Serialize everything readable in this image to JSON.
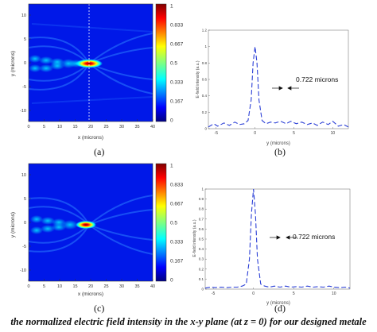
{
  "panels": {
    "a": {
      "caption": "(a)",
      "xlabel": "x (microns)",
      "ylabel": "y (microns)",
      "xticks": [
        "0",
        "5",
        "10",
        "15",
        "20",
        "25",
        "30",
        "35",
        "40"
      ],
      "yticks": [
        "10",
        "5",
        "0",
        "-5",
        "-10"
      ],
      "colorbar_ticks": [
        "1",
        "0.833",
        "0.667",
        "0.5",
        "0.333",
        "0.167",
        "0"
      ]
    },
    "b": {
      "caption": "(b)",
      "xlabel": "y (microns)",
      "ylabel": "E-field intensity (a.u.)",
      "xticks": [
        "-5",
        "0",
        "5",
        "10"
      ],
      "yticks": [
        "1.2",
        "1",
        "0.8",
        "0.6",
        "0.4",
        "0.2",
        "0"
      ],
      "annotation": "0.722 microns"
    },
    "c": {
      "caption": "(c)",
      "xlabel": "x (microns)",
      "ylabel": "y (microns)",
      "xticks": [
        "0",
        "5",
        "10",
        "15",
        "20",
        "25",
        "30",
        "35",
        "40"
      ],
      "yticks": [
        "10",
        "5",
        "0",
        "-5",
        "-10"
      ],
      "colorbar_ticks": [
        "1",
        "0.833",
        "0.667",
        "0.5",
        "0.333",
        "0.167",
        "0"
      ]
    },
    "d": {
      "caption": "(d)",
      "xlabel": "y (microns)",
      "ylabel": "E-field intensity (a.u.)",
      "xticks": [
        "-5",
        "0",
        "5",
        "10"
      ],
      "yticks": [
        "1",
        "0.9",
        "0.8",
        "0.7",
        "0.6",
        "0.5",
        "0.4",
        "0.3",
        "0.2",
        "0.1",
        "0"
      ],
      "annotation": "0.722 microns"
    }
  },
  "caption_text": "the normalized electric field intensity in the x-y plane (at z = 0) for our designed metale",
  "colors": {
    "line": "#2b3fd6",
    "background": "#ffffff"
  },
  "chart_data": [
    {
      "type": "heatmap",
      "title": "",
      "xlabel": "x (microns)",
      "ylabel": "y (microns)",
      "xlim": [
        0,
        40
      ],
      "ylim": [
        -12,
        12
      ],
      "colorbar": {
        "min": 0,
        "max": 1,
        "ticks": [
          0,
          0.167,
          0.333,
          0.5,
          0.667,
          0.833,
          1
        ]
      },
      "focus": {
        "x": 20,
        "y": 0,
        "value": 1
      },
      "guide_line_x": 20
    },
    {
      "type": "line",
      "xlabel": "y (microns)",
      "ylabel": "E-field intensity (a.u.)",
      "xlim": [
        -6,
        12
      ],
      "ylim": [
        0,
        1.2
      ],
      "x": [
        -6,
        -5.3,
        -4.8,
        -4,
        -3.3,
        -2.6,
        -2,
        -1.4,
        -0.9,
        -0.5,
        -0.25,
        0,
        0.25,
        0.5,
        0.9,
        1.4,
        2,
        2.6,
        3.3,
        4,
        4.6,
        5.3,
        6,
        6.7,
        7.4,
        8,
        8.7,
        9.4,
        10,
        10.7,
        11.4,
        12
      ],
      "y": [
        0.02,
        0.06,
        0.03,
        0.07,
        0.04,
        0.08,
        0.05,
        0.06,
        0.1,
        0.35,
        0.8,
        1.0,
        0.8,
        0.35,
        0.1,
        0.06,
        0.08,
        0.07,
        0.09,
        0.06,
        0.09,
        0.06,
        0.08,
        0.05,
        0.07,
        0.04,
        0.08,
        0.05,
        0.09,
        0.03,
        0.05,
        0.02
      ],
      "fwhm": 0.722
    },
    {
      "type": "heatmap",
      "title": "",
      "xlabel": "x (microns)",
      "ylabel": "y (microns)",
      "xlim": [
        0,
        40
      ],
      "ylim": [
        -12,
        12
      ],
      "colorbar": {
        "min": 0,
        "max": 1,
        "ticks": [
          0,
          0.167,
          0.333,
          0.5,
          0.667,
          0.833,
          1
        ]
      },
      "focus": {
        "x": 20,
        "y": 0,
        "value": 1
      }
    },
    {
      "type": "line",
      "xlabel": "y (microns)",
      "ylabel": "E-field intensity (a.u.)",
      "xlim": [
        -6,
        12
      ],
      "ylim": [
        0,
        1.0
      ],
      "x": [
        -6,
        -5.3,
        -4.8,
        -4,
        -3.3,
        -2.6,
        -2,
        -1.4,
        -0.9,
        -0.5,
        -0.25,
        0,
        0.25,
        0.5,
        0.9,
        1.4,
        2,
        2.6,
        3.3,
        4,
        4.6,
        5.3,
        6,
        6.7,
        7.4,
        8,
        8.7,
        9.4,
        10,
        10.7,
        11.4,
        12
      ],
      "y": [
        0.01,
        0.02,
        0.015,
        0.02,
        0.015,
        0.02,
        0.02,
        0.03,
        0.05,
        0.3,
        0.75,
        1.0,
        0.75,
        0.3,
        0.05,
        0.03,
        0.02,
        0.03,
        0.02,
        0.03,
        0.02,
        0.025,
        0.02,
        0.03,
        0.02,
        0.025,
        0.02,
        0.03,
        0.02,
        0.015,
        0.02,
        0.01
      ],
      "fwhm": 0.722
    }
  ]
}
